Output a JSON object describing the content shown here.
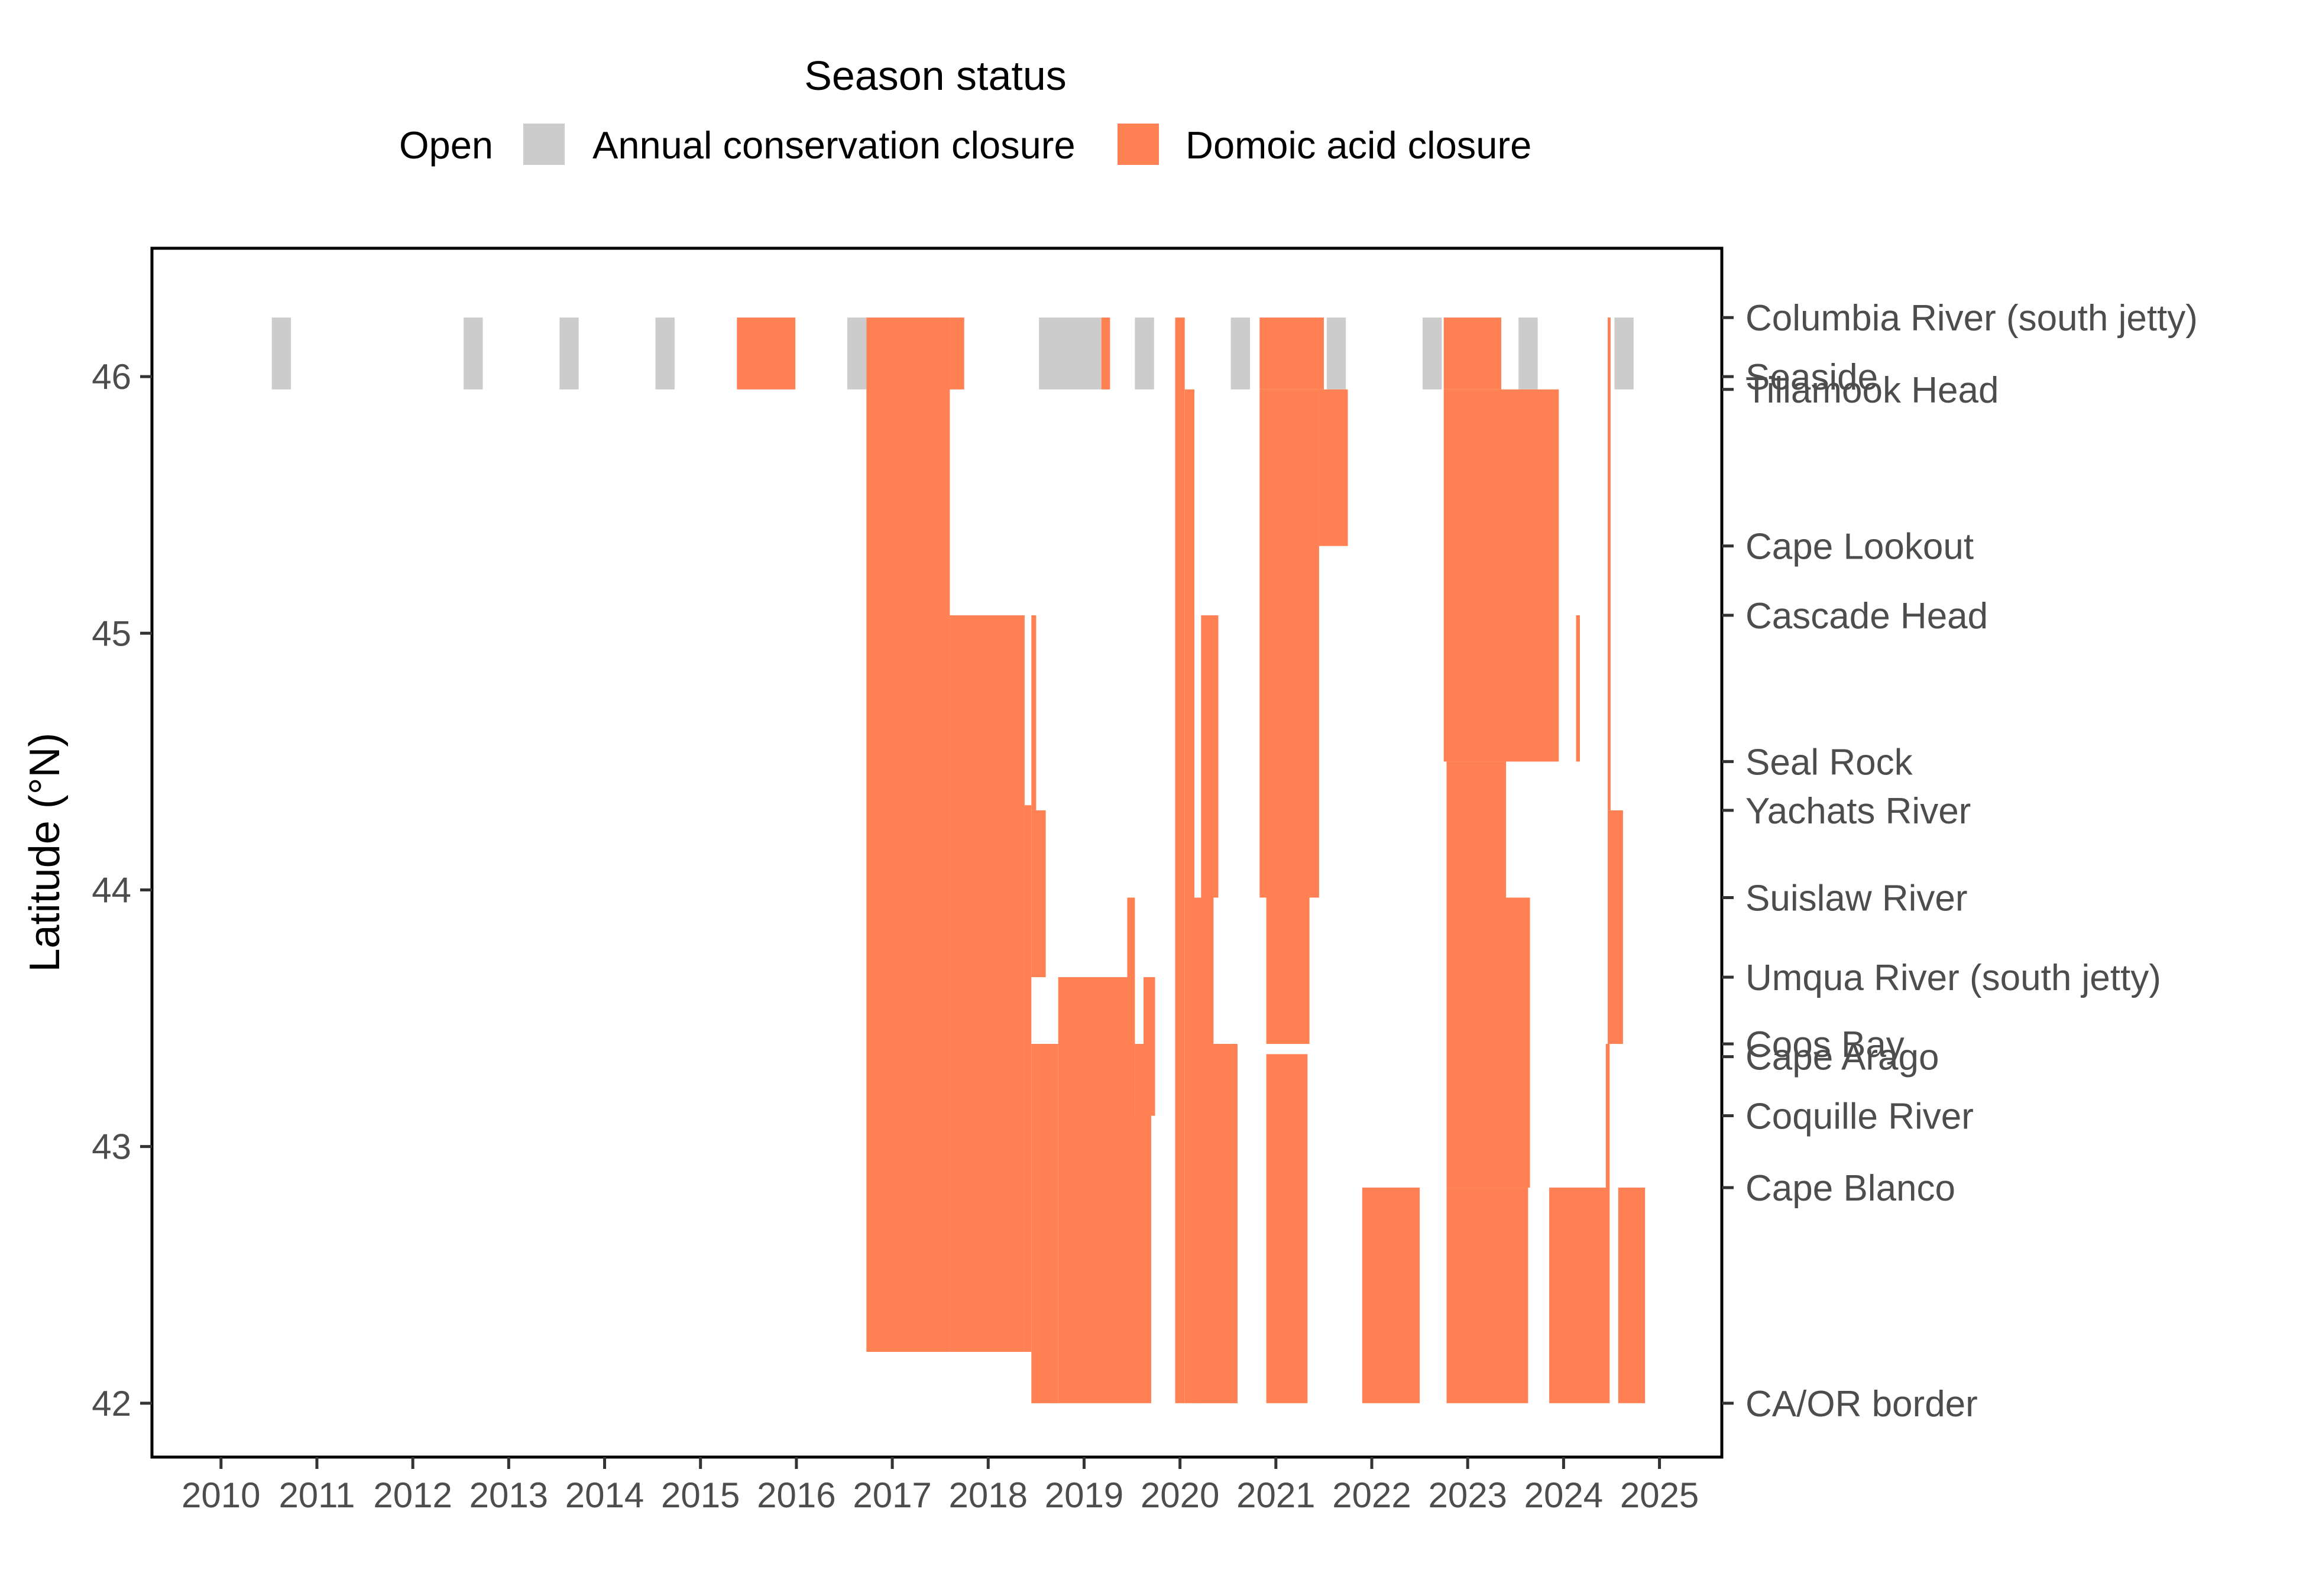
{
  "chart_data": {
    "type": "heatmap",
    "title": "",
    "xlabel": "",
    "ylabel": "Latitude (°N)",
    "xlim": [
      2009.28,
      2025.65
    ],
    "ylim": [
      41.79,
      46.5
    ],
    "grid": false,
    "legend": {
      "title": "Season status",
      "position": "top",
      "entries": [
        {
          "label": "Open",
          "color": "#ffffff"
        },
        {
          "label": "Annual conservation closure",
          "color": "#cccccc"
        },
        {
          "label": "Domoic acid closure",
          "color": "#ff8052"
        }
      ]
    },
    "x_ticks": [
      {
        "value": 2010.0,
        "label": "2010"
      },
      {
        "value": 2011.0,
        "label": "2011"
      },
      {
        "value": 2012.0,
        "label": "2012"
      },
      {
        "value": 2013.0,
        "label": "2013"
      },
      {
        "value": 2014.0,
        "label": "2014"
      },
      {
        "value": 2015.0,
        "label": "2015"
      },
      {
        "value": 2016.0,
        "label": "2016"
      },
      {
        "value": 2017.0,
        "label": "2017"
      },
      {
        "value": 2018.0,
        "label": "2018"
      },
      {
        "value": 2019.0,
        "label": "2019"
      },
      {
        "value": 2020.0,
        "label": "2020"
      },
      {
        "value": 2021.0,
        "label": "2021"
      },
      {
        "value": 2022.0,
        "label": "2022"
      },
      {
        "value": 2023.0,
        "label": "2023"
      },
      {
        "value": 2024.0,
        "label": "2024"
      },
      {
        "value": 2025.0,
        "label": "2025"
      }
    ],
    "y_ticks": [
      {
        "value": 42,
        "label": "42"
      },
      {
        "value": 43,
        "label": "43"
      },
      {
        "value": 44,
        "label": "44"
      },
      {
        "value": 45,
        "label": "45"
      },
      {
        "value": 46,
        "label": "46"
      }
    ],
    "locations": [
      {
        "name": "Columbia River (south jetty)",
        "lat": 46.23
      },
      {
        "name": "Seaside",
        "lat": 46.0
      },
      {
        "name": "Tillamook Head",
        "lat": 45.95
      },
      {
        "name": "Cape Lookout",
        "lat": 45.34
      },
      {
        "name": "Cascade Head",
        "lat": 45.07
      },
      {
        "name": "Seal Rock",
        "lat": 44.5
      },
      {
        "name": "Yachats River",
        "lat": 44.31
      },
      {
        "name": "Suislaw River",
        "lat": 43.97
      },
      {
        "name": "Umqua River (south jetty)",
        "lat": 43.66
      },
      {
        "name": "Coos Bay",
        "lat": 43.4
      },
      {
        "name": "Cape Arago",
        "lat": 43.35
      },
      {
        "name": "Coquille River",
        "lat": 43.12
      },
      {
        "name": "Cape Blanco",
        "lat": 42.84
      },
      {
        "name": "CA/OR border",
        "lat": 42.0
      }
    ],
    "closures": [
      {
        "status": "Annual conservation closure",
        "x0": 2010.53,
        "x1": 2010.73,
        "y0": 45.95,
        "y1": 46.23
      },
      {
        "status": "Annual conservation closure",
        "x0": 2012.53,
        "x1": 2012.73,
        "y0": 45.95,
        "y1": 46.23
      },
      {
        "status": "Annual conservation closure",
        "x0": 2013.53,
        "x1": 2013.73,
        "y0": 45.95,
        "y1": 46.23
      },
      {
        "status": "Annual conservation closure",
        "x0": 2014.53,
        "x1": 2014.73,
        "y0": 45.95,
        "y1": 46.23
      },
      {
        "status": "Annual conservation closure",
        "x0": 2016.53,
        "x1": 2016.73,
        "y0": 45.95,
        "y1": 46.23
      },
      {
        "status": "Annual conservation closure",
        "x0": 2018.53,
        "x1": 2019.18,
        "y0": 45.95,
        "y1": 46.23
      },
      {
        "status": "Annual conservation closure",
        "x0": 2019.53,
        "x1": 2019.73,
        "y0": 45.95,
        "y1": 46.23
      },
      {
        "status": "Annual conservation closure",
        "x0": 2020.53,
        "x1": 2020.73,
        "y0": 45.95,
        "y1": 46.23
      },
      {
        "status": "Annual conservation closure",
        "x0": 2021.53,
        "x1": 2021.73,
        "y0": 45.95,
        "y1": 46.23
      },
      {
        "status": "Annual conservation closure",
        "x0": 2022.53,
        "x1": 2022.73,
        "y0": 45.95,
        "y1": 46.23
      },
      {
        "status": "Annual conservation closure",
        "x0": 2023.53,
        "x1": 2023.73,
        "y0": 45.95,
        "y1": 46.23
      },
      {
        "status": "Annual conservation closure",
        "x0": 2024.53,
        "x1": 2024.73,
        "y0": 45.95,
        "y1": 46.23
      },
      {
        "status": "Domoic acid closure",
        "x0": 2015.38,
        "x1": 2015.99,
        "y0": 45.95,
        "y1": 46.23
      },
      {
        "status": "Domoic acid closure",
        "x0": 2016.73,
        "x1": 2017.6,
        "y0": 42.2,
        "y1": 46.23
      },
      {
        "status": "Domoic acid closure",
        "x0": 2017.6,
        "x1": 2017.75,
        "y0": 45.95,
        "y1": 46.23
      },
      {
        "status": "Domoic acid closure",
        "x0": 2017.6,
        "x1": 2018.38,
        "y0": 42.2,
        "y1": 45.07
      },
      {
        "status": "Domoic acid closure",
        "x0": 2018.38,
        "x1": 2018.45,
        "y0": 42.2,
        "y1": 44.33
      },
      {
        "status": "Domoic acid closure",
        "x0": 2018.45,
        "x1": 2018.6,
        "y0": 43.66,
        "y1": 44.31
      },
      {
        "status": "Domoic acid closure",
        "x0": 2018.45,
        "x1": 2018.73,
        "y0": 42.0,
        "y1": 43.4
      },
      {
        "status": "Domoic acid closure",
        "x0": 2018.45,
        "x1": 2018.5,
        "y0": 44.31,
        "y1": 45.07
      },
      {
        "status": "Domoic acid closure",
        "x0": 2018.73,
        "x1": 2019.7,
        "y0": 42.0,
        "y1": 43.12
      },
      {
        "status": "Domoic acid closure",
        "x0": 2018.73,
        "x1": 2019.45,
        "y0": 43.12,
        "y1": 43.66
      },
      {
        "status": "Domoic acid closure",
        "x0": 2019.45,
        "x1": 2019.53,
        "y0": 43.12,
        "y1": 43.97
      },
      {
        "status": "Domoic acid closure",
        "x0": 2019.53,
        "x1": 2019.62,
        "y0": 43.12,
        "y1": 43.4
      },
      {
        "status": "Domoic acid closure",
        "x0": 2019.62,
        "x1": 2019.74,
        "y0": 43.12,
        "y1": 43.66
      },
      {
        "status": "Domoic acid closure",
        "x0": 2019.18,
        "x1": 2019.27,
        "y0": 45.95,
        "y1": 46.23
      },
      {
        "status": "Domoic acid closure",
        "x0": 2019.95,
        "x1": 2020.05,
        "y0": 42.0,
        "y1": 46.23
      },
      {
        "status": "Domoic acid closure",
        "x0": 2020.05,
        "x1": 2020.15,
        "y0": 42.0,
        "y1": 45.95
      },
      {
        "status": "Domoic acid closure",
        "x0": 2020.15,
        "x1": 2020.6,
        "y0": 42.0,
        "y1": 43.4
      },
      {
        "status": "Domoic acid closure",
        "x0": 2020.15,
        "x1": 2020.35,
        "y0": 43.4,
        "y1": 43.97
      },
      {
        "status": "Domoic acid closure",
        "x0": 2020.22,
        "x1": 2020.4,
        "y0": 43.97,
        "y1": 45.07
      },
      {
        "status": "Domoic acid closure",
        "x0": 2020.83,
        "x1": 2021.5,
        "y0": 45.95,
        "y1": 46.23
      },
      {
        "status": "Domoic acid closure",
        "x0": 2020.83,
        "x1": 2021.45,
        "y0": 43.97,
        "y1": 45.95
      },
      {
        "status": "Domoic acid closure",
        "x0": 2021.45,
        "x1": 2021.75,
        "y0": 45.34,
        "y1": 45.95
      },
      {
        "status": "Domoic acid closure",
        "x0": 2020.9,
        "x1": 2021.35,
        "y0": 43.4,
        "y1": 43.97
      },
      {
        "status": "Domoic acid closure",
        "x0": 2020.9,
        "x1": 2021.33,
        "y0": 42.0,
        "y1": 43.36
      },
      {
        "status": "Domoic acid closure",
        "x0": 2021.9,
        "x1": 2022.5,
        "y0": 42.0,
        "y1": 42.84
      },
      {
        "status": "Domoic acid closure",
        "x0": 2022.75,
        "x1": 2023.35,
        "y0": 45.95,
        "y1": 46.23
      },
      {
        "status": "Domoic acid closure",
        "x0": 2022.75,
        "x1": 2023.95,
        "y0": 44.5,
        "y1": 45.95
      },
      {
        "status": "Domoic acid closure",
        "x0": 2022.78,
        "x1": 2023.4,
        "y0": 43.97,
        "y1": 44.5
      },
      {
        "status": "Domoic acid closure",
        "x0": 2022.78,
        "x1": 2023.65,
        "y0": 42.84,
        "y1": 43.97
      },
      {
        "status": "Domoic acid closure",
        "x0": 2022.78,
        "x1": 2023.63,
        "y0": 42.0,
        "y1": 42.84
      },
      {
        "status": "Domoic acid closure",
        "x0": 2024.13,
        "x1": 2024.17,
        "y0": 44.5,
        "y1": 45.07
      },
      {
        "status": "Domoic acid closure",
        "x0": 2023.85,
        "x1": 2024.48,
        "y0": 42.0,
        "y1": 42.84
      },
      {
        "status": "Domoic acid closure",
        "x0": 2024.44,
        "x1": 2024.48,
        "y0": 42.84,
        "y1": 43.4
      },
      {
        "status": "Domoic acid closure",
        "x0": 2024.46,
        "x1": 2024.62,
        "y0": 43.4,
        "y1": 44.31
      },
      {
        "status": "Domoic acid closure",
        "x0": 2024.46,
        "x1": 2024.49,
        "y0": 44.31,
        "y1": 46.23
      },
      {
        "status": "Domoic acid closure",
        "x0": 2024.57,
        "x1": 2024.85,
        "y0": 42.0,
        "y1": 42.84
      }
    ]
  }
}
